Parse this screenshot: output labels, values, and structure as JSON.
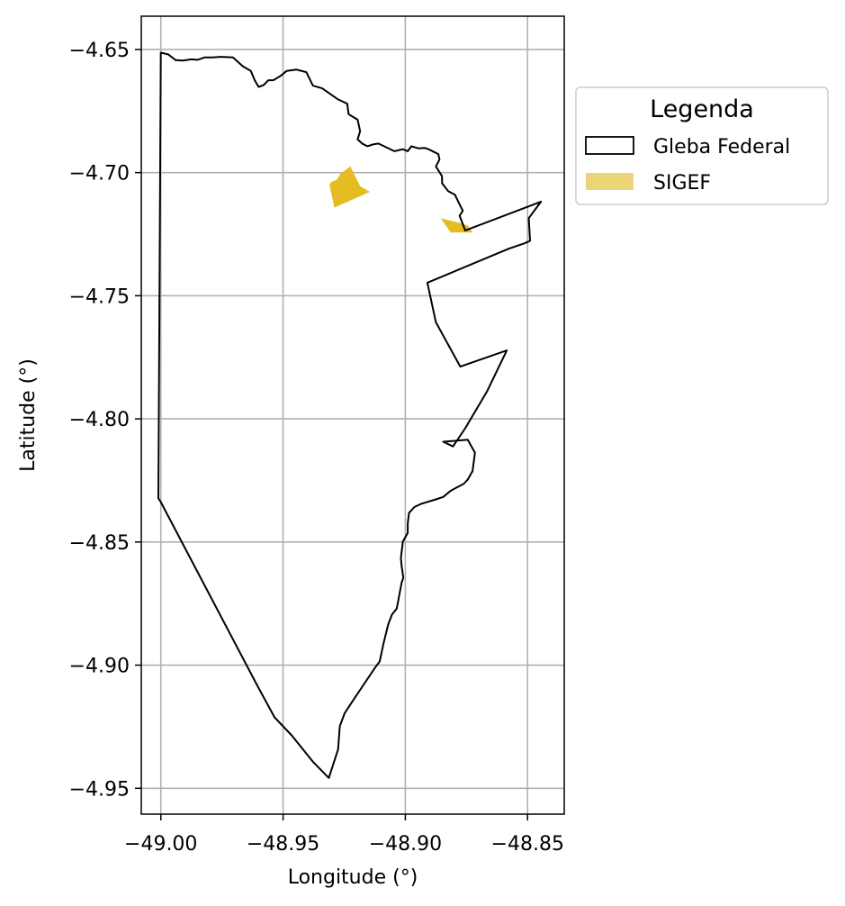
{
  "chart_data": {
    "type": "map",
    "xlabel": "Longitude (°)",
    "ylabel": "Latitude (°)",
    "xlim": [
      -49.008,
      -48.835
    ],
    "ylim": [
      -4.9605,
      -4.6365
    ],
    "x_ticks": [
      -49.0,
      -48.95,
      -48.9,
      -48.85
    ],
    "x_tick_labels": [
      "−49.00",
      "−48.95",
      "−48.90",
      "−48.85"
    ],
    "y_ticks": [
      -4.65,
      -4.7,
      -4.75,
      -4.8,
      -4.85,
      -4.9,
      -4.95
    ],
    "y_tick_labels": [
      "−4.65",
      "−4.70",
      "−4.75",
      "−4.80",
      "−4.85",
      "−4.90",
      "−4.95"
    ],
    "grid": true,
    "legend": {
      "title": "Legenda",
      "placement": "outside-right-top",
      "entries": [
        {
          "label": "Gleba Federal",
          "style": "outline",
          "edge_color": "#000000",
          "fill_color": "#ffffff"
        },
        {
          "label": "SIGEF",
          "style": "fill",
          "fill_color": "#ebd576"
        }
      ]
    },
    "series": [
      {
        "name": "Gleba Federal",
        "kind": "polygon-outline",
        "stroke_color": "#000000",
        "coordinates": [
          [
            -49.0,
            -4.6513
          ],
          [
            -48.997,
            -4.652
          ],
          [
            -48.995,
            -4.6535
          ],
          [
            -48.994,
            -4.6543
          ],
          [
            -48.991,
            -4.6545
          ],
          [
            -48.9875,
            -4.654
          ],
          [
            -48.985,
            -4.6542
          ],
          [
            -48.982,
            -4.6532
          ],
          [
            -48.979,
            -4.6532
          ],
          [
            -48.9755,
            -4.653
          ],
          [
            -48.9705,
            -4.6532
          ],
          [
            -48.9665,
            -4.6568
          ],
          [
            -48.9632,
            -4.6587
          ],
          [
            -48.9615,
            -4.6627
          ],
          [
            -48.96,
            -4.6652
          ],
          [
            -48.958,
            -4.6645
          ],
          [
            -48.956,
            -4.6625
          ],
          [
            -48.954,
            -4.6625
          ],
          [
            -48.951,
            -4.6607
          ],
          [
            -48.9485,
            -4.6587
          ],
          [
            -48.9445,
            -4.6582
          ],
          [
            -48.9405,
            -4.6592
          ],
          [
            -48.9378,
            -4.6647
          ],
          [
            -48.934,
            -4.6658
          ],
          [
            -48.9315,
            -4.6675
          ],
          [
            -48.9275,
            -4.6703
          ],
          [
            -48.9238,
            -4.672
          ],
          [
            -48.9232,
            -4.6763
          ],
          [
            -48.9212,
            -4.6775
          ],
          [
            -48.9195,
            -4.6785
          ],
          [
            -48.9185,
            -4.6832
          ],
          [
            -48.9195,
            -4.6865
          ],
          [
            -48.9175,
            -4.6883
          ],
          [
            -48.9155,
            -4.6893
          ],
          [
            -48.913,
            -4.6885
          ],
          [
            -48.911,
            -4.6882
          ],
          [
            -48.9045,
            -4.6913
          ],
          [
            -48.901,
            -4.6905
          ],
          [
            -48.899,
            -4.6913
          ],
          [
            -48.8975,
            -4.6893
          ],
          [
            -48.8945,
            -4.6902
          ],
          [
            -48.892,
            -4.69
          ],
          [
            -48.8905,
            -4.6905
          ],
          [
            -48.8865,
            -4.6925
          ],
          [
            -48.886,
            -4.6947
          ],
          [
            -48.8875,
            -4.6975
          ],
          [
            -48.885,
            -4.7015
          ],
          [
            -48.885,
            -4.7043
          ],
          [
            -48.8825,
            -4.7075
          ],
          [
            -48.8797,
            -4.709
          ],
          [
            -48.8775,
            -4.7135
          ],
          [
            -48.8765,
            -4.7155
          ],
          [
            -48.8778,
            -4.7175
          ],
          [
            -48.8755,
            -4.7235
          ],
          [
            -48.8445,
            -4.7118
          ],
          [
            -48.8495,
            -4.7185
          ],
          [
            -48.849,
            -4.7277
          ],
          [
            -48.8515,
            -4.7288
          ],
          [
            -48.8575,
            -4.7308
          ],
          [
            -48.891,
            -4.7447
          ],
          [
            -48.8875,
            -4.7608
          ],
          [
            -48.8775,
            -4.7788
          ],
          [
            -48.8585,
            -4.7722
          ],
          [
            -48.8665,
            -4.7887
          ],
          [
            -48.8755,
            -4.8038
          ],
          [
            -48.8805,
            -4.8112
          ],
          [
            -48.8845,
            -4.8093
          ],
          [
            -48.8745,
            -4.8085
          ],
          [
            -48.8715,
            -4.8137
          ],
          [
            -48.8725,
            -4.8212
          ],
          [
            -48.8745,
            -4.8247
          ],
          [
            -48.876,
            -4.8263
          ],
          [
            -48.8815,
            -4.8292
          ],
          [
            -48.8845,
            -4.8317
          ],
          [
            -48.8875,
            -4.8327
          ],
          [
            -48.8935,
            -4.8345
          ],
          [
            -48.8963,
            -4.8358
          ],
          [
            -48.8985,
            -4.8382
          ],
          [
            -48.899,
            -4.8425
          ],
          [
            -48.899,
            -4.8463
          ],
          [
            -48.901,
            -4.8498
          ],
          [
            -48.9018,
            -4.8565
          ],
          [
            -48.9015,
            -4.8598
          ],
          [
            -48.9008,
            -4.8645
          ],
          [
            -48.9015,
            -4.8665
          ],
          [
            -48.9035,
            -4.877
          ],
          [
            -48.9055,
            -4.8795
          ],
          [
            -48.907,
            -4.8835
          ],
          [
            -48.909,
            -4.8915
          ],
          [
            -48.9105,
            -4.8985
          ],
          [
            -48.9125,
            -4.9012
          ],
          [
            -48.9215,
            -4.9145
          ],
          [
            -48.9248,
            -4.9195
          ],
          [
            -48.9268,
            -4.9248
          ],
          [
            -48.9275,
            -4.9342
          ],
          [
            -48.9313,
            -4.9458
          ],
          [
            -48.9378,
            -4.9392
          ],
          [
            -48.9465,
            -4.9285
          ],
          [
            -48.9535,
            -4.9212
          ],
          [
            -48.9608,
            -4.9078
          ],
          [
            -49.0,
            -4.8338
          ],
          [
            -49.001,
            -4.8322
          ],
          [
            -49.0,
            -4.6513
          ]
        ]
      },
      {
        "name": "SIGEF",
        "kind": "polygon-fill",
        "fill_color": "#e3bd21",
        "polygons": [
          [
            [
              -48.9225,
              -4.6975
            ],
            [
              -48.9185,
              -4.7055
            ],
            [
              -48.9145,
              -4.7078
            ],
            [
              -48.929,
              -4.7142
            ],
            [
              -48.931,
              -4.7052
            ],
            [
              -48.9305,
              -4.704
            ],
            [
              -48.928,
              -4.7028
            ],
            [
              -48.9265,
              -4.7005
            ]
          ],
          [
            [
              -48.8855,
              -4.7185
            ],
            [
              -48.8815,
              -4.7243
            ],
            [
              -48.8725,
              -4.7243
            ],
            [
              -48.8745,
              -4.7215
            ],
            [
              -48.8755,
              -4.7212
            ],
            [
              -48.8775,
              -4.7205
            ]
          ]
        ]
      }
    ]
  }
}
